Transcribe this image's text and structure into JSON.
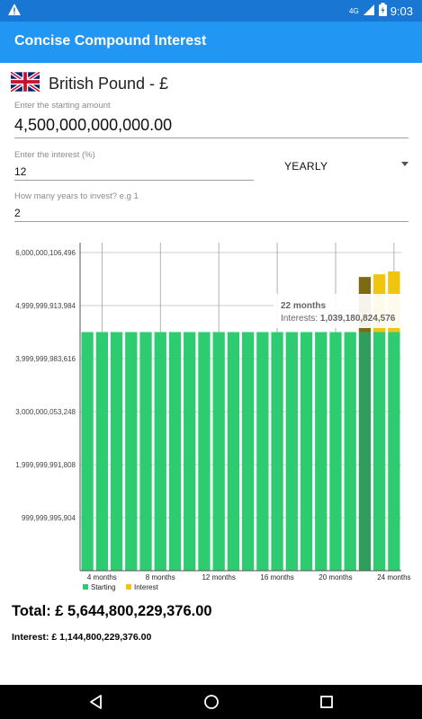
{
  "status": {
    "network": "4G",
    "time": "9:03"
  },
  "app_title": "Concise Compound Interest",
  "currency": {
    "flag": "uk-flag-icon",
    "label": "British Pound - £"
  },
  "amount": {
    "hint": "Enter the starting amount",
    "value": "4,500,000,000,000.00"
  },
  "interest": {
    "hint": "Enter the interest (%)",
    "value": "12"
  },
  "frequency": {
    "selected": "YEARLY"
  },
  "years": {
    "hint": "How many years to invest? e.g 1",
    "value": "2"
  },
  "colors": {
    "starting": "#2ecc71",
    "interest": "#f1c40f",
    "highlight": "#7f6a14",
    "appbar": "#2196f3",
    "statusbar": "#1976d2"
  },
  "chart_data": {
    "type": "bar",
    "stacked": true,
    "y_tick_labels": [
      "999,999,995,904",
      "1,999,999,991,808",
      "3,000,000,053,248",
      "3,999,999,983,616",
      "4,999,999,913,984",
      "6,000,000,106,496"
    ],
    "y_ticks": [
      999999995904,
      1999999991808,
      3000000053248,
      3999999983616,
      4999999913984,
      6000000106496
    ],
    "ylim": [
      0,
      6186000000000
    ],
    "x_tick_labels": [
      "4 months",
      "8 months",
      "12 months",
      "16 months",
      "20 months",
      "24 months"
    ],
    "x_tick_months": [
      4,
      8,
      12,
      16,
      20,
      24
    ],
    "months": [
      3,
      4,
      5,
      6,
      7,
      8,
      9,
      10,
      11,
      12,
      13,
      14,
      15,
      16,
      17,
      18,
      19,
      20,
      21,
      22,
      23,
      24
    ],
    "starting": 4500000000000,
    "interest_values": [
      0,
      0,
      0,
      0,
      0,
      0,
      0,
      0,
      0,
      0,
      0,
      0,
      0,
      0,
      0,
      0,
      0,
      0,
      0,
      1039180824576,
      1090000000000,
      1144800229376
    ],
    "series": [
      {
        "name": "Starting",
        "color": "#2ecc71"
      },
      {
        "name": "Interest",
        "color": "#f1c40f"
      }
    ],
    "legend_position": "bottom-left",
    "grid": true,
    "highlighted_month": 22,
    "tooltip": {
      "title": "22 months",
      "label": "Interests:",
      "value": "1,039,180,824,576"
    }
  },
  "total": "Total: £ 5,644,800,229,376.00",
  "interest_total": "Interest: £ 1,144,800,229,376.00"
}
